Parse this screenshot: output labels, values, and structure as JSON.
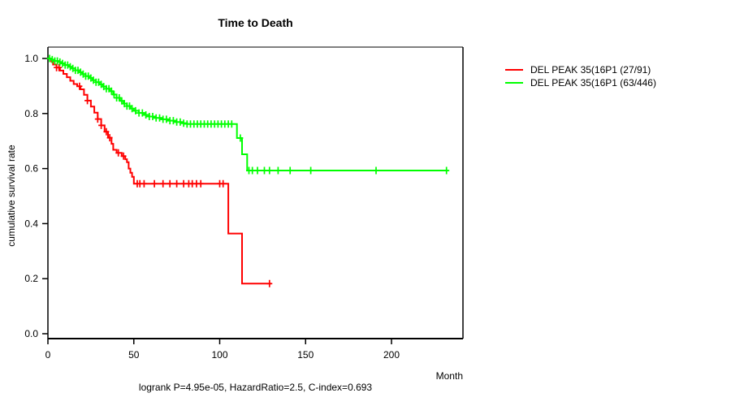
{
  "title": "Time to Death",
  "axes": {
    "x_label": "Month",
    "y_label": "cumulative survival rate"
  },
  "annotation": "logrank P=4.95e-05, HazardRatio=2.5, C-index=0.693",
  "legend": [
    {
      "label": "DEL PEAK 35(16P1 (27/91)",
      "color": "#ff0000"
    },
    {
      "label": "DEL PEAK 35(16P1 (63/446)",
      "color": "#00ff00"
    }
  ],
  "colors": {
    "axis": "#000000",
    "box_top": "#808080",
    "background": "#ffffff",
    "group1": "#ff0000",
    "group2": "#00ff00"
  },
  "chart_data": {
    "type": "line",
    "subtype": "kaplan_meier_step",
    "title": "Time to Death",
    "xlabel": "Month",
    "ylabel": "cumulative survival rate",
    "xlim": [
      0,
      241
    ],
    "ylim": [
      0.0,
      1.0
    ],
    "x_ticks": [
      0,
      50,
      100,
      150,
      200
    ],
    "y_ticks": [
      1.0,
      0.8,
      0.6,
      0.4,
      0.2,
      0.0
    ],
    "grid": false,
    "legend_position": "right-outside",
    "annotation": "logrank P=4.95e-05, HazardRatio=2.5, C-index=0.693",
    "series": [
      {
        "name": "DEL PEAK 35(16P1 (27/91)",
        "color": "#ff0000",
        "events_over_n": "27/91",
        "steps": [
          [
            0,
            1.0
          ],
          [
            2,
            0.989
          ],
          [
            3,
            0.978
          ],
          [
            5,
            0.967
          ],
          [
            7,
            0.956
          ],
          [
            9,
            0.944
          ],
          [
            11,
            0.932
          ],
          [
            13,
            0.919
          ],
          [
            15,
            0.907
          ],
          [
            17,
            0.899
          ],
          [
            19,
            0.888
          ],
          [
            21,
            0.868
          ],
          [
            23,
            0.847
          ],
          [
            25,
            0.825
          ],
          [
            27,
            0.803
          ],
          [
            29,
            0.78
          ],
          [
            31,
            0.757
          ],
          [
            33,
            0.734
          ],
          [
            35,
            0.712
          ],
          [
            37,
            0.69
          ],
          [
            38,
            0.668
          ],
          [
            40,
            0.657
          ],
          [
            43,
            0.645
          ],
          [
            45,
            0.634
          ],
          [
            46,
            0.623
          ],
          [
            47,
            0.6
          ],
          [
            48,
            0.585
          ],
          [
            49,
            0.57
          ],
          [
            50,
            0.545
          ],
          [
            105,
            0.364
          ],
          [
            113,
            0.182
          ]
        ],
        "censor_times": [
          5,
          6.5,
          18.4,
          23,
          29,
          31,
          34,
          36,
          41,
          44,
          52,
          53.5,
          56,
          62,
          67,
          71,
          75,
          79,
          82,
          84,
          86.5,
          89,
          100,
          102,
          129
        ],
        "end_time": 130
      },
      {
        "name": "DEL PEAK 35(16P1 (63/446)",
        "color": "#00ff00",
        "events_over_n": "63/446",
        "steps": [
          [
            0,
            1.0
          ],
          [
            2,
            0.996
          ],
          [
            4,
            0.991
          ],
          [
            6,
            0.987
          ],
          [
            8,
            0.982
          ],
          [
            10,
            0.976
          ],
          [
            12,
            0.97
          ],
          [
            14,
            0.964
          ],
          [
            16,
            0.957
          ],
          [
            18,
            0.95
          ],
          [
            20,
            0.943
          ],
          [
            22,
            0.936
          ],
          [
            24,
            0.929
          ],
          [
            26,
            0.921
          ],
          [
            28,
            0.914
          ],
          [
            30,
            0.906
          ],
          [
            32,
            0.898
          ],
          [
            34,
            0.89
          ],
          [
            36,
            0.881
          ],
          [
            38,
            0.869
          ],
          [
            40,
            0.857
          ],
          [
            42,
            0.846
          ],
          [
            44,
            0.836
          ],
          [
            46,
            0.827
          ],
          [
            48,
            0.818
          ],
          [
            50,
            0.81
          ],
          [
            53,
            0.802
          ],
          [
            56,
            0.795
          ],
          [
            59,
            0.789
          ],
          [
            62,
            0.784
          ],
          [
            66,
            0.779
          ],
          [
            70,
            0.774
          ],
          [
            74,
            0.769
          ],
          [
            78,
            0.765
          ],
          [
            81,
            0.762
          ],
          [
            110,
            0.711
          ],
          [
            113,
            0.652
          ],
          [
            116,
            0.593
          ]
        ],
        "censor_times": [
          1,
          2.5,
          4,
          5.5,
          7,
          8.5,
          10,
          11.5,
          13,
          14.5,
          16,
          17.5,
          19,
          20.5,
          22,
          23.5,
          25,
          26.5,
          28,
          29.5,
          31,
          32.5,
          34,
          35.5,
          37,
          38.5,
          40,
          41.5,
          43,
          44.5,
          46,
          47.5,
          49,
          51,
          53,
          55,
          57,
          59,
          61,
          63,
          65,
          67,
          69,
          71,
          73,
          75,
          77,
          79,
          81,
          83,
          85,
          87,
          89,
          91,
          93,
          95,
          97,
          99,
          101,
          103,
          105,
          107,
          112,
          117,
          119,
          122,
          126,
          129,
          134,
          141,
          153,
          191,
          232
        ],
        "end_time": 233
      }
    ]
  }
}
